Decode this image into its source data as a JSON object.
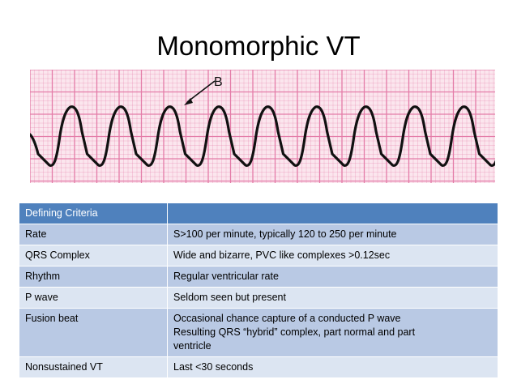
{
  "title": "Monomorphic VT",
  "ecg": {
    "annotation_label": "B",
    "grid_color": "#e47ca8",
    "background_color": "#fbe6ee",
    "trace_color": "#111111"
  },
  "table": {
    "header": {
      "criteria": "Defining Criteria",
      "value": ""
    },
    "rows": [
      {
        "criteria": "Rate",
        "lines": [
          "S>100 per minute, typically 120 to 250 per minute"
        ]
      },
      {
        "criteria": "QRS Complex",
        "lines": [
          "Wide and bizarre, PVC like complexes >0.12sec"
        ]
      },
      {
        "criteria": "Rhythm",
        "lines": [
          "Regular ventricular rate"
        ]
      },
      {
        "criteria": "P wave",
        "lines": [
          "Seldom seen but present"
        ]
      },
      {
        "criteria": "Fusion beat",
        "lines": [
          "Occasional chance capture of a conducted P wave",
          "Resulting QRS “hybrid” complex, part normal and part",
          "ventricle"
        ]
      },
      {
        "criteria": "Nonsustained VT",
        "lines": [
          "Last <30 seconds"
        ]
      }
    ],
    "header_color": "#4f81bd",
    "row_color_dark": "#b9c9e4",
    "row_color_light": "#dce5f2"
  }
}
